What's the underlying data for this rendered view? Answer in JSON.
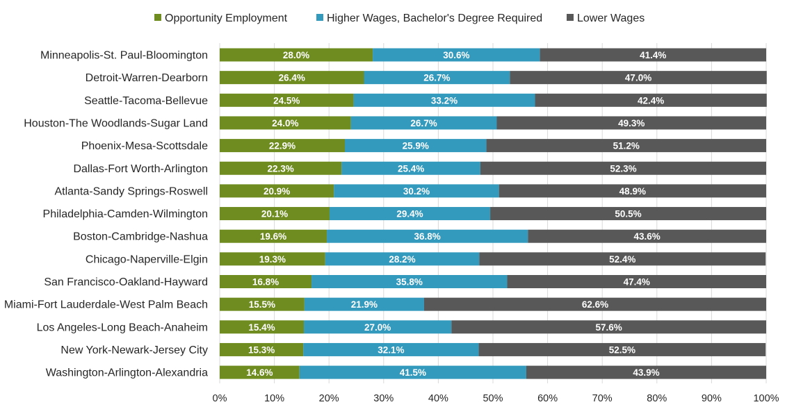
{
  "chart_data": {
    "type": "bar",
    "orientation": "horizontal",
    "stacked": true,
    "legend_position": "top",
    "grid": true,
    "xlim": [
      0,
      100
    ],
    "ticks": [
      "0%",
      "10%",
      "20%",
      "30%",
      "40%",
      "50%",
      "60%",
      "70%",
      "80%",
      "90%",
      "100%"
    ],
    "categories": [
      "Minneapolis-St. Paul-Bloomington",
      "Detroit-Warren-Dearborn",
      "Seattle-Tacoma-Bellevue",
      "Houston-The Woodlands-Sugar Land",
      "Phoenix-Mesa-Scottsdale",
      "Dallas-Fort Worth-Arlington",
      "Atlanta-Sandy Springs-Roswell",
      "Philadelphia-Camden-Wilmington",
      "Boston-Cambridge-Nashua",
      "Chicago-Naperville-Elgin",
      "San Francisco-Oakland-Hayward",
      "Miami-Fort Lauderdale-West Palm Beach",
      "Los Angeles-Long Beach-Anaheim",
      "New York-Newark-Jersey City",
      "Washington-Arlington-Alexandria"
    ],
    "series": [
      {
        "name": "Opportunity Employment",
        "color": "#6e8c1f",
        "values": [
          28.0,
          26.4,
          24.5,
          24.0,
          22.9,
          22.3,
          20.9,
          20.1,
          19.6,
          19.3,
          16.8,
          15.5,
          15.4,
          15.3,
          14.6
        ],
        "labels": [
          "28.0%",
          "26.4%",
          "24.5%",
          "24.0%",
          "22.9%",
          "22.3%",
          "20.9%",
          "20.1%",
          "19.6%",
          "19.3%",
          "16.8%",
          "15.5%",
          "15.4%",
          "15.3%",
          "14.6%"
        ]
      },
      {
        "name": "Higher Wages, Bachelor's Degree Required",
        "color": "#3399bd",
        "values": [
          30.6,
          26.7,
          33.2,
          26.7,
          25.9,
          25.4,
          30.2,
          29.4,
          36.8,
          28.2,
          35.8,
          21.9,
          27.0,
          32.1,
          41.5
        ],
        "labels": [
          "30.6%",
          "26.7%",
          "33.2%",
          "26.7%",
          "25.9%",
          "25.4%",
          "30.2%",
          "29.4%",
          "36.8%",
          "28.2%",
          "35.8%",
          "21.9%",
          "27.0%",
          "32.1%",
          "41.5%"
        ]
      },
      {
        "name": "Lower Wages",
        "color": "#585858",
        "values": [
          41.4,
          47.0,
          42.4,
          49.3,
          51.2,
          52.3,
          48.9,
          50.5,
          43.6,
          52.4,
          47.4,
          62.6,
          57.6,
          52.5,
          43.9
        ],
        "labels": [
          "41.4%",
          "47.0%",
          "42.4%",
          "49.3%",
          "51.2%",
          "52.3%",
          "48.9%",
          "50.5%",
          "43.6%",
          "52.4%",
          "47.4%",
          "62.6%",
          "57.6%",
          "52.5%",
          "43.9%"
        ]
      }
    ],
    "gridline_color": "#d9d9d9",
    "text_color": "#262626"
  }
}
